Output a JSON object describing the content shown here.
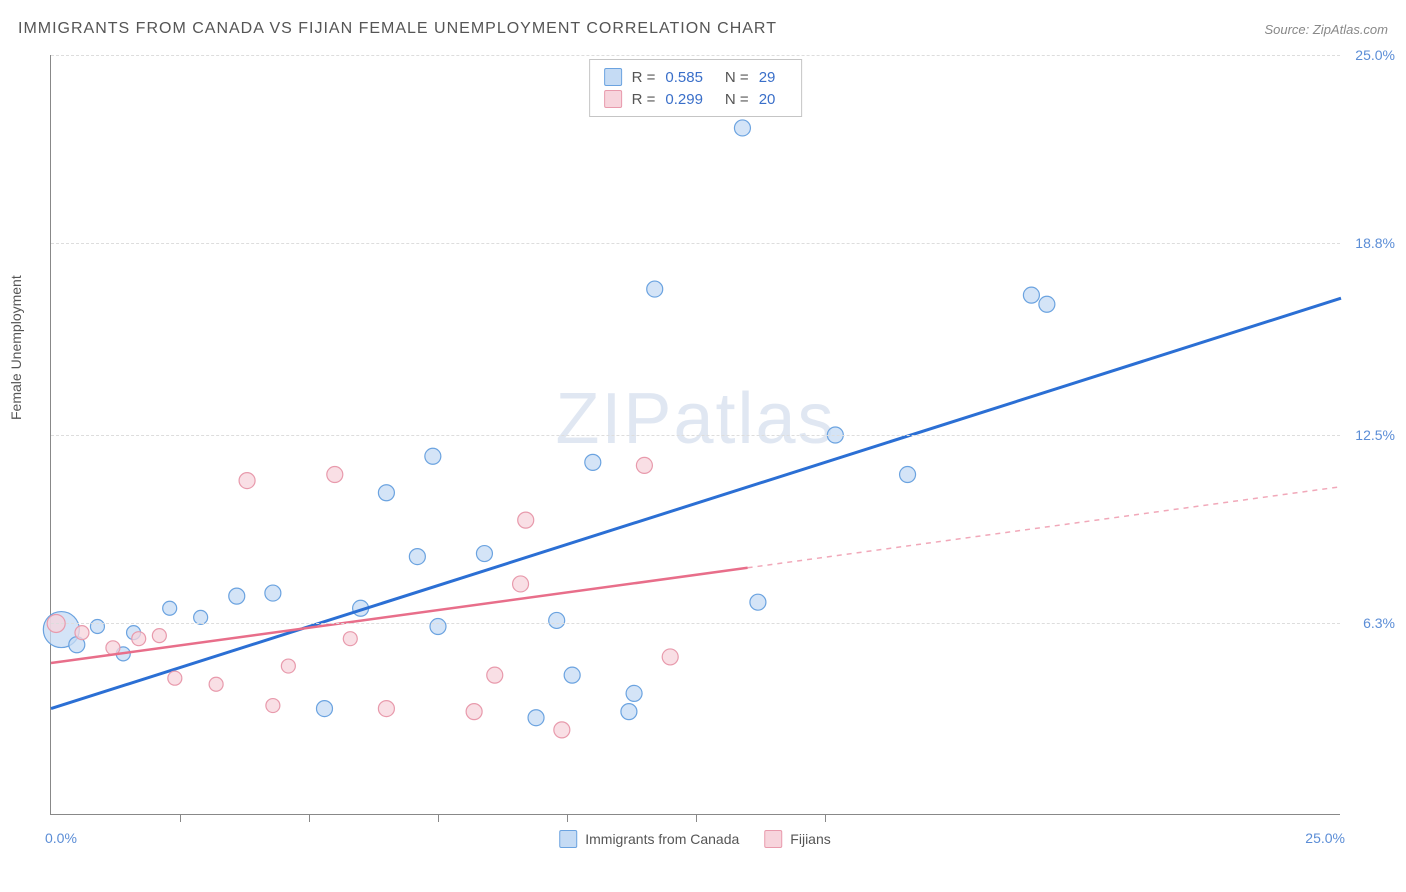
{
  "title": "IMMIGRANTS FROM CANADA VS FIJIAN FEMALE UNEMPLOYMENT CORRELATION CHART",
  "source_label": "Source: ",
  "source_name": "ZipAtlas.com",
  "y_axis_label": "Female Unemployment",
  "watermark_zip": "ZIP",
  "watermark_atlas": "atlas",
  "chart": {
    "type": "scatter",
    "background_color": "#ffffff",
    "grid_color": "#dddddd",
    "axis_color": "#888888",
    "label_color": "#5b8dd6",
    "xlim": [
      0,
      25
    ],
    "ylim": [
      0,
      25
    ],
    "y_ticks": [
      6.3,
      12.5,
      18.8,
      25.0
    ],
    "y_tick_labels": [
      "6.3%",
      "12.5%",
      "18.8%",
      "25.0%"
    ],
    "x_ticks": [
      2.5,
      5,
      7.5,
      10,
      12.5,
      15
    ],
    "x_min_label": "0.0%",
    "x_max_label": "25.0%",
    "series": [
      {
        "name": "Immigrants from Canada",
        "marker_fill": "#c5dbf4",
        "marker_stroke": "#6ba3e0",
        "line_color": "#2b6fd4",
        "line_width": 3,
        "r_value": "0.585",
        "n_value": "29",
        "trend_start": [
          0,
          3.5
        ],
        "trend_end": [
          25,
          17.0
        ],
        "trend_dash_start_x": 25,
        "points": [
          {
            "x": 0.2,
            "y": 6.1,
            "r": 18
          },
          {
            "x": 0.5,
            "y": 5.6,
            "r": 8
          },
          {
            "x": 0.9,
            "y": 6.2,
            "r": 7
          },
          {
            "x": 1.4,
            "y": 5.3,
            "r": 7
          },
          {
            "x": 1.6,
            "y": 6.0,
            "r": 7
          },
          {
            "x": 2.3,
            "y": 6.8,
            "r": 7
          },
          {
            "x": 2.9,
            "y": 6.5,
            "r": 7
          },
          {
            "x": 3.6,
            "y": 7.2,
            "r": 8
          },
          {
            "x": 4.3,
            "y": 7.3,
            "r": 8
          },
          {
            "x": 5.3,
            "y": 3.5,
            "r": 8
          },
          {
            "x": 6.0,
            "y": 6.8,
            "r": 8
          },
          {
            "x": 6.5,
            "y": 10.6,
            "r": 8
          },
          {
            "x": 7.1,
            "y": 8.5,
            "r": 8
          },
          {
            "x": 7.4,
            "y": 11.8,
            "r": 8
          },
          {
            "x": 7.5,
            "y": 6.2,
            "r": 8
          },
          {
            "x": 8.4,
            "y": 8.6,
            "r": 8
          },
          {
            "x": 9.4,
            "y": 3.2,
            "r": 8
          },
          {
            "x": 9.8,
            "y": 6.4,
            "r": 8
          },
          {
            "x": 10.1,
            "y": 4.6,
            "r": 8
          },
          {
            "x": 10.5,
            "y": 11.6,
            "r": 8
          },
          {
            "x": 11.2,
            "y": 3.4,
            "r": 8
          },
          {
            "x": 11.3,
            "y": 4.0,
            "r": 8
          },
          {
            "x": 11.7,
            "y": 17.3,
            "r": 8
          },
          {
            "x": 13.4,
            "y": 22.6,
            "r": 8
          },
          {
            "x": 13.7,
            "y": 7.0,
            "r": 8
          },
          {
            "x": 15.2,
            "y": 12.5,
            "r": 8
          },
          {
            "x": 16.6,
            "y": 11.2,
            "r": 8
          },
          {
            "x": 19.0,
            "y": 17.1,
            "r": 8
          },
          {
            "x": 19.3,
            "y": 16.8,
            "r": 8
          }
        ]
      },
      {
        "name": "Fijians",
        "marker_fill": "#f7d4dc",
        "marker_stroke": "#e89aac",
        "line_color": "#e86e8a",
        "line_width": 2.5,
        "r_value": "0.299",
        "n_value": "20",
        "trend_start": [
          0,
          5.0
        ],
        "trend_end": [
          25,
          10.8
        ],
        "trend_dash_start_x": 13.5,
        "points": [
          {
            "x": 0.1,
            "y": 6.3,
            "r": 9
          },
          {
            "x": 0.6,
            "y": 6.0,
            "r": 7
          },
          {
            "x": 1.2,
            "y": 5.5,
            "r": 7
          },
          {
            "x": 1.7,
            "y": 5.8,
            "r": 7
          },
          {
            "x": 2.1,
            "y": 5.9,
            "r": 7
          },
          {
            "x": 2.4,
            "y": 4.5,
            "r": 7
          },
          {
            "x": 3.2,
            "y": 4.3,
            "r": 7
          },
          {
            "x": 3.8,
            "y": 11.0,
            "r": 8
          },
          {
            "x": 4.3,
            "y": 3.6,
            "r": 7
          },
          {
            "x": 4.6,
            "y": 4.9,
            "r": 7
          },
          {
            "x": 5.5,
            "y": 11.2,
            "r": 8
          },
          {
            "x": 5.8,
            "y": 5.8,
            "r": 7
          },
          {
            "x": 6.5,
            "y": 3.5,
            "r": 8
          },
          {
            "x": 8.2,
            "y": 3.4,
            "r": 8
          },
          {
            "x": 8.6,
            "y": 4.6,
            "r": 8
          },
          {
            "x": 9.1,
            "y": 7.6,
            "r": 8
          },
          {
            "x": 9.2,
            "y": 9.7,
            "r": 8
          },
          {
            "x": 9.9,
            "y": 2.8,
            "r": 8
          },
          {
            "x": 11.5,
            "y": 11.5,
            "r": 8
          },
          {
            "x": 12.0,
            "y": 5.2,
            "r": 8
          }
        ]
      }
    ],
    "top_legend": {
      "r_label": "R =",
      "n_label": "N ="
    },
    "bottom_legend": {
      "items": [
        "Immigrants from Canada",
        "Fijians"
      ]
    }
  }
}
